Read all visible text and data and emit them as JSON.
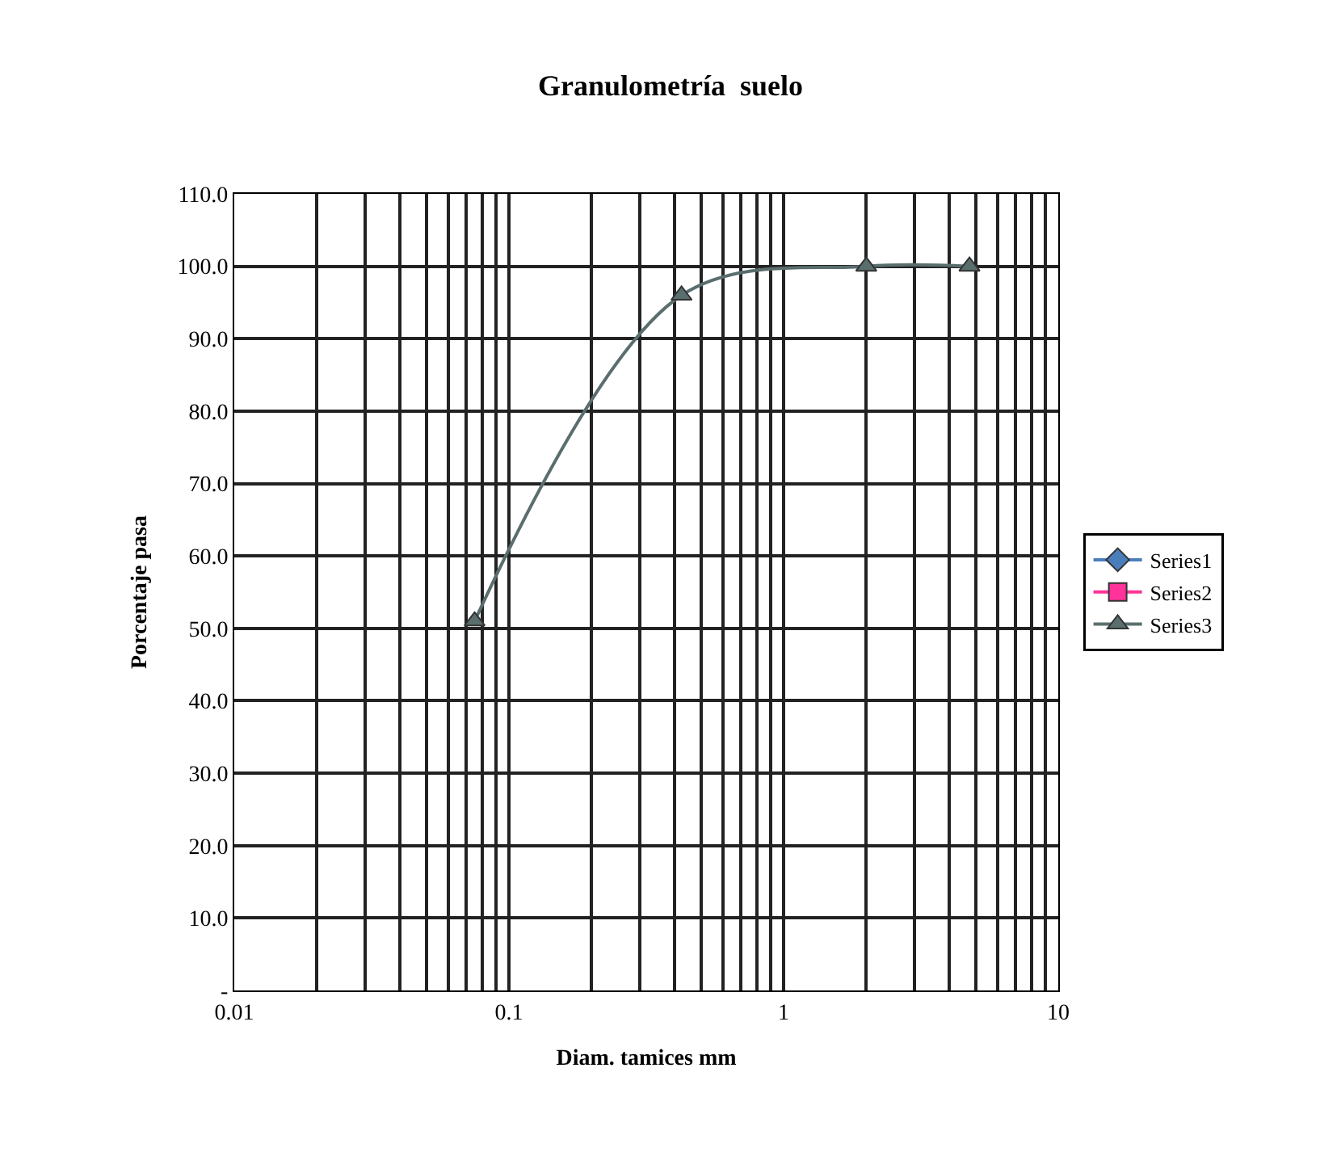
{
  "chart_data": {
    "type": "line",
    "title": "Granulometría  suelo",
    "xlabel": "Diam. tamices mm",
    "ylabel": "Porcentaje pasa",
    "log": "x",
    "grid": true,
    "legend": "right",
    "xlim": [
      0.01,
      10
    ],
    "xticks": [
      0.01,
      {
        "value": 0.02,
        "label": null
      },
      {
        "value": 0.03,
        "label": null
      },
      {
        "value": 0.04,
        "label": null
      },
      {
        "value": 0.05,
        "label": null
      },
      {
        "value": 0.06,
        "label": null
      },
      {
        "value": 0.07,
        "label": null
      },
      {
        "value": 0.08,
        "label": null
      },
      {
        "value": 0.09,
        "label": null
      },
      0.1,
      {
        "value": 0.2,
        "label": null
      },
      {
        "value": 0.3,
        "label": null
      },
      {
        "value": 0.4,
        "label": null
      },
      {
        "value": 0.5,
        "label": null
      },
      {
        "value": 0.6,
        "label": null
      },
      {
        "value": 0.7,
        "label": null
      },
      {
        "value": 0.8,
        "label": null
      },
      {
        "value": 0.9,
        "label": null
      },
      1,
      {
        "value": 2,
        "label": null
      },
      {
        "value": 3,
        "label": null
      },
      {
        "value": 4,
        "label": null
      },
      {
        "value": 5,
        "label": null
      },
      {
        "value": 6,
        "label": null
      },
      {
        "value": 7,
        "label": null
      },
      {
        "value": 8,
        "label": null
      },
      {
        "value": 9,
        "label": null
      },
      10
    ],
    "ylim": [
      0,
      110
    ],
    "yticks": [
      {
        "value": 0,
        "label": "-"
      },
      {
        "value": 10,
        "label": "10.0"
      },
      {
        "value": 20,
        "label": "20.0"
      },
      {
        "value": 30,
        "label": "30.0"
      },
      {
        "value": 40,
        "label": "40.0"
      },
      {
        "value": 50,
        "label": "50.0"
      },
      {
        "value": 60,
        "label": "60.0"
      },
      {
        "value": 70,
        "label": "70.0"
      },
      {
        "value": 80,
        "label": "80.0"
      },
      {
        "value": 90,
        "label": "90.0"
      },
      {
        "value": 100,
        "label": "100.0"
      },
      {
        "value": 110,
        "label": "110.0"
      }
    ],
    "x": [
      0.075,
      0.425,
      2.0,
      4.75
    ],
    "series": [
      {
        "name": "Series1",
        "color": "#4a7ebb",
        "marker": "diamond",
        "values": [
          null,
          null,
          null,
          null
        ]
      },
      {
        "name": "Series2",
        "color": "#ff3399",
        "marker": "square",
        "values": [
          null,
          null,
          null,
          null
        ]
      },
      {
        "name": "Series3",
        "color": "#5a6e6e",
        "marker": "triangle",
        "values": [
          51,
          96,
          100,
          100
        ]
      }
    ]
  }
}
